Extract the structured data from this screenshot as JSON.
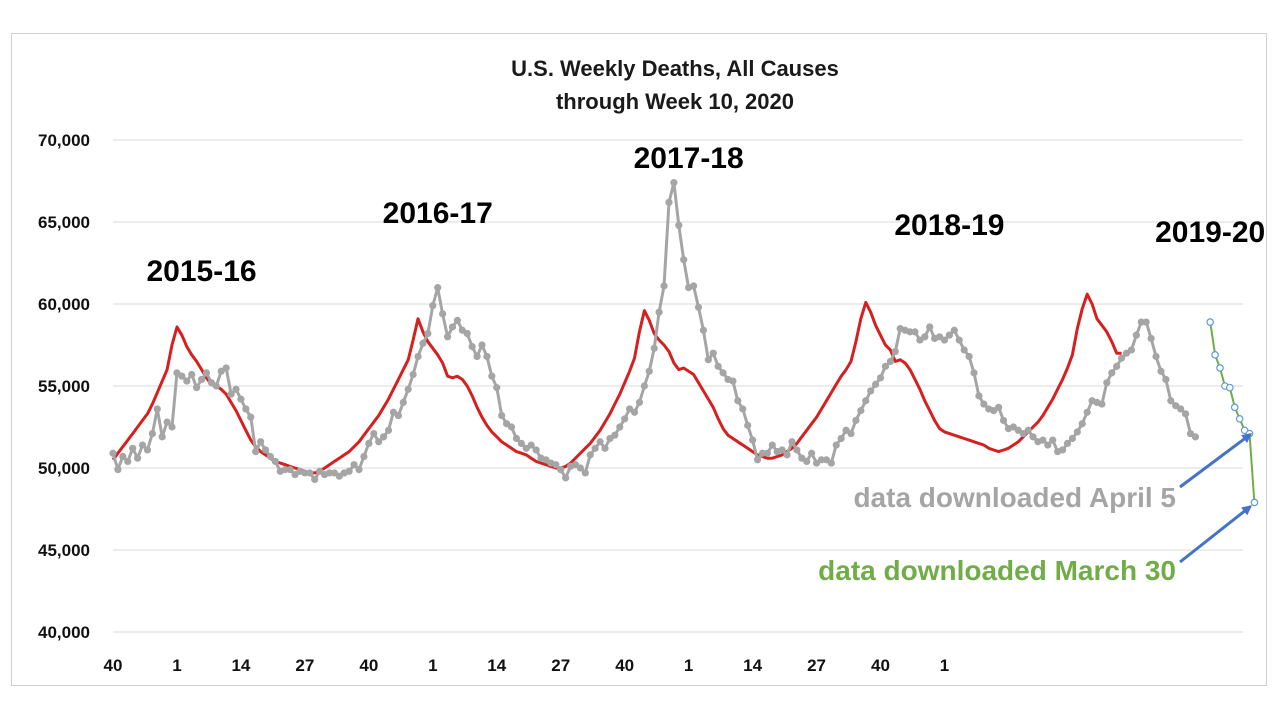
{
  "chart_data": {
    "type": "line",
    "title": "U.S. Weekly Deaths, All Causes",
    "subtitle": "through Week 10, 2020",
    "xlabel": "",
    "ylabel": "",
    "ylim": [
      40000,
      70000
    ],
    "y_ticks": [
      "40,000",
      "45,000",
      "50,000",
      "55,000",
      "60,000",
      "65,000",
      "70,000"
    ],
    "x_ticks": [
      {
        "week_index": 0,
        "label": "40"
      },
      {
        "week_index": 13,
        "label": "1"
      },
      {
        "week_index": 26,
        "label": "14"
      },
      {
        "week_index": 39,
        "label": "27"
      },
      {
        "week_index": 52,
        "label": "40"
      },
      {
        "week_index": 65,
        "label": "1"
      },
      {
        "week_index": 78,
        "label": "14"
      },
      {
        "week_index": 91,
        "label": "27"
      },
      {
        "week_index": 104,
        "label": "40"
      },
      {
        "week_index": 117,
        "label": "1"
      },
      {
        "week_index": 130,
        "label": "14"
      },
      {
        "week_index": 143,
        "label": "27"
      },
      {
        "week_index": 156,
        "label": "40"
      },
      {
        "week_index": 169,
        "label": "1"
      }
    ],
    "grid": true,
    "season_labels": [
      {
        "text": "2015-16",
        "week_index": 18
      },
      {
        "text": "2016-17",
        "week_index": 66
      },
      {
        "text": "2017-18",
        "week_index": 117
      },
      {
        "text": "2018-19",
        "week_index": 170
      },
      {
        "text": "2019-20",
        "week_index": 223
      }
    ],
    "series": [
      {
        "color": "#d62020",
        "start_week_index": 0,
        "values": [
          50500,
          50900,
          51300,
          51700,
          52100,
          52500,
          52900,
          53300,
          53900,
          54600,
          55300,
          56000,
          57500,
          58600,
          58100,
          57400,
          56900,
          56500,
          56000,
          55500,
          55100,
          55000,
          54800,
          54500,
          54000,
          53500,
          52900,
          52300,
          51700,
          51300,
          51000,
          50800,
          50600,
          50400,
          50300,
          50200,
          50100,
          50000,
          49900,
          49800,
          49700,
          49700,
          49800,
          50000,
          50200,
          50400,
          50600,
          50800,
          51000,
          51300,
          51600,
          52000,
          52400,
          52800,
          53200,
          53700,
          54200,
          54800,
          55400,
          56000,
          56600,
          57800,
          59100,
          58300,
          57700,
          57300,
          56900,
          56400,
          55600,
          55500,
          55600,
          55400,
          55000,
          54400,
          53700,
          53100,
          52600,
          52200,
          51900,
          51600,
          51400,
          51200,
          51000,
          50900,
          50800,
          50600,
          50400,
          50300,
          50200,
          50100,
          50000,
          50000,
          50100,
          50300,
          50600,
          50900,
          51200,
          51500,
          51900,
          52300,
          52800,
          53300,
          53900,
          54500,
          55200,
          55900,
          56700,
          58300,
          59600,
          59000,
          58200,
          57800,
          57500,
          57100,
          56400,
          56000,
          56100,
          55900,
          55700,
          55200,
          54700,
          54200,
          53700,
          53000,
          52400,
          52000,
          51800,
          51600,
          51400,
          51200,
          51000,
          50800,
          50700,
          50600,
          50600,
          50700,
          50800,
          51000,
          51200,
          51500,
          51900,
          52300,
          52700,
          53100,
          53600,
          54100,
          54600,
          55100,
          55600,
          56000,
          56500,
          57700,
          59100,
          60100,
          59500,
          58700,
          58100,
          57500,
          57200,
          56500,
          56600,
          56400,
          56000,
          55400,
          54800,
          54100,
          53500,
          52900,
          52400,
          52200,
          52100,
          52000,
          51900,
          51800,
          51700,
          51600,
          51500,
          51400,
          51200,
          51100,
          51000,
          51100,
          51200,
          51400,
          51600,
          51900,
          52200,
          52500,
          52800,
          53200,
          53700,
          54200,
          54800,
          55400,
          56100,
          56900,
          58500,
          59700,
          60600,
          60000,
          59100,
          58700,
          58300,
          57700,
          57000,
          57000
        ]
      },
      {
        "color": "#a5a5a5",
        "start_week_index": 0,
        "values": [
          50900,
          49900,
          50700,
          50400,
          51200,
          50600,
          51400,
          51100,
          52100,
          53600,
          51900,
          52800,
          52500,
          55800,
          55600,
          55300,
          55700,
          54900,
          55400,
          55800,
          55200,
          55000,
          55900,
          56100,
          54500,
          54800,
          54200,
          53600,
          53100,
          51000,
          51600,
          51100,
          50700,
          50400,
          49800,
          49900,
          49900,
          49600,
          49800,
          49700,
          49700,
          49300,
          49800,
          49600,
          49700,
          49700,
          49500,
          49700,
          49800,
          50200,
          49900,
          50700,
          51500,
          52100,
          51600,
          51900,
          52300,
          53400,
          53200,
          54000,
          54800,
          55700,
          56800,
          57600,
          58200,
          59900,
          61000,
          59400,
          58000,
          58600,
          59000,
          58400,
          58200,
          57400,
          56800,
          57500,
          56800,
          55600,
          54900,
          53200,
          52700,
          52500,
          51800,
          51500,
          51200,
          51400,
          51100,
          50600,
          50500,
          50300,
          50200,
          49900,
          49400,
          50100,
          50200,
          50000,
          49700,
          50800,
          51200,
          51600,
          51200,
          51800,
          52000,
          52500,
          53000,
          53600,
          53400,
          54000,
          55000,
          55900,
          57300,
          59500,
          61100,
          66200,
          67400,
          64800,
          62700,
          61000,
          61100,
          59800,
          58400,
          56600,
          57000,
          56200,
          55800,
          55400,
          55300,
          54100,
          53600,
          52600,
          51700,
          50500,
          50900,
          50900,
          51400,
          51000,
          51100,
          50800,
          51600,
          51100,
          50600,
          50400,
          50900,
          50300,
          50500,
          50500,
          50300,
          51400,
          51800,
          52300,
          52100,
          52900,
          53500,
          54100,
          54700,
          55100,
          55500,
          56200,
          56500,
          57100,
          58500,
          58400,
          58300,
          58300,
          57800,
          58000,
          58600,
          57900,
          58000,
          57800,
          58100,
          58400,
          57800,
          57200,
          56800,
          55800,
          54400,
          53900,
          53600,
          53500,
          53700,
          52900,
          52400,
          52500,
          52300,
          52100,
          52300,
          51900,
          51600,
          51700,
          51400,
          51700,
          51000,
          51100,
          51500,
          51800,
          52200,
          52700,
          53400,
          54100,
          54000,
          53900,
          55200,
          55800,
          56200,
          56700,
          57000,
          57200,
          58100,
          58900,
          58900,
          57900,
          56800,
          55900,
          55400,
          54100,
          53800,
          53600,
          53300,
          52100,
          51900
        ]
      },
      {
        "color": "#70ad47",
        "start_week_index": 223,
        "values": [
          58900,
          56900,
          56100,
          55000,
          54900,
          53700,
          53000,
          52300,
          52100,
          47900
        ]
      }
    ],
    "annotations": [
      {
        "text": "data downloaded April 5",
        "color": "#a5a5a5",
        "points_to_week_index": 232,
        "points_to_value": 52300
      },
      {
        "text": "data downloaded March 30",
        "color": "#70ad47",
        "points_to_week_index": 232,
        "points_to_value": 47900
      }
    ]
  }
}
